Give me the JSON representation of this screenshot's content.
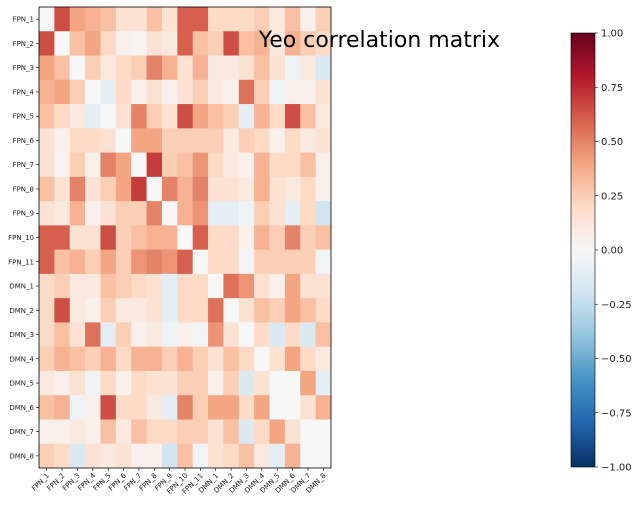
{
  "chart_data": {
    "type": "heatmap",
    "title": "Yeo correlation matrix",
    "xlabel": "",
    "ylabel": "",
    "labels": [
      "FPN_1",
      "FPN_2",
      "FPN_3",
      "FPN_4",
      "FPN_5",
      "FPN_6",
      "FPN_7",
      "FPN_8",
      "FPN_9",
      "FPN_10",
      "FPN_11",
      "DMN_1",
      "DMN_2",
      "DMN_3",
      "DMN_4",
      "DMN_5",
      "DMN_6",
      "DMN_7",
      "DMN_8"
    ],
    "values": [
      [
        0.0,
        0.65,
        0.4,
        0.35,
        0.3,
        0.15,
        0.15,
        0.3,
        0.15,
        0.6,
        0.6,
        0.2,
        0.2,
        0.2,
        0.25,
        0.1,
        0.3,
        0.05,
        0.25
      ],
      [
        0.65,
        0.0,
        0.3,
        0.4,
        0.2,
        0.05,
        0.03,
        0.15,
        0.1,
        0.6,
        0.3,
        0.25,
        0.65,
        0.3,
        0.35,
        0.1,
        0.35,
        0.25,
        0.2
      ],
      [
        0.4,
        0.3,
        0.0,
        0.25,
        0.1,
        0.2,
        0.25,
        0.5,
        0.35,
        0.15,
        0.35,
        0.1,
        0.1,
        0.15,
        0.3,
        0.15,
        -0.05,
        0.1,
        -0.15
      ],
      [
        0.35,
        0.4,
        0.25,
        0.0,
        -0.1,
        0.2,
        0.05,
        0.15,
        0.05,
        0.15,
        0.25,
        0.1,
        0.05,
        0.55,
        0.25,
        -0.05,
        0.05,
        0.05,
        0.15
      ],
      [
        0.3,
        0.2,
        0.1,
        -0.1,
        0.0,
        0.15,
        0.5,
        0.25,
        0.15,
        0.65,
        0.4,
        0.3,
        0.25,
        -0.1,
        0.35,
        0.2,
        0.65,
        0.3,
        0.1
      ],
      [
        0.15,
        0.05,
        0.2,
        0.2,
        0.15,
        0.0,
        0.4,
        0.4,
        0.25,
        0.25,
        0.25,
        0.25,
        0.1,
        0.25,
        0.2,
        0.05,
        0.2,
        0.1,
        0.15
      ],
      [
        0.15,
        0.03,
        0.25,
        0.05,
        0.5,
        0.4,
        0.0,
        0.7,
        0.25,
        0.3,
        0.45,
        0.2,
        0.1,
        0.05,
        0.35,
        0.2,
        0.2,
        0.3,
        0.05
      ],
      [
        0.3,
        0.15,
        0.5,
        0.15,
        0.25,
        0.4,
        0.7,
        0.0,
        0.5,
        0.35,
        0.5,
        0.15,
        0.15,
        0.1,
        0.35,
        0.15,
        0.1,
        0.2,
        0.05
      ],
      [
        0.15,
        0.1,
        0.35,
        0.05,
        0.15,
        0.25,
        0.25,
        0.5,
        0.0,
        0.35,
        0.45,
        -0.1,
        -0.1,
        -0.05,
        0.25,
        0.15,
        -0.1,
        0.2,
        -0.2
      ],
      [
        0.6,
        0.6,
        0.15,
        0.15,
        0.65,
        0.25,
        0.3,
        0.35,
        0.35,
        0.0,
        0.6,
        0.2,
        0.2,
        0.05,
        0.35,
        0.25,
        0.5,
        0.25,
        0.3
      ],
      [
        0.6,
        0.3,
        0.35,
        0.25,
        0.4,
        0.25,
        0.45,
        0.5,
        0.45,
        0.6,
        0.0,
        0.2,
        0.2,
        -0.03,
        0.25,
        0.25,
        0.25,
        0.25,
        -0.03
      ],
      [
        0.2,
        0.25,
        0.1,
        0.1,
        0.3,
        0.25,
        0.2,
        0.15,
        -0.1,
        0.2,
        0.2,
        0.0,
        0.55,
        0.45,
        0.15,
        0.05,
        0.4,
        0.15,
        0.15
      ],
      [
        0.2,
        0.65,
        0.1,
        0.05,
        0.25,
        0.1,
        0.1,
        0.15,
        -0.1,
        0.2,
        0.2,
        0.55,
        0.0,
        0.15,
        0.3,
        0.25,
        0.4,
        0.3,
        0.2
      ],
      [
        0.2,
        0.3,
        0.15,
        0.55,
        -0.1,
        0.25,
        0.05,
        0.1,
        -0.05,
        0.05,
        -0.03,
        0.45,
        0.15,
        0.0,
        0.2,
        -0.15,
        0.2,
        -0.15,
        0.3
      ],
      [
        0.25,
        0.35,
        0.3,
        0.25,
        0.35,
        0.2,
        0.35,
        0.35,
        0.25,
        0.35,
        0.25,
        0.15,
        0.3,
        0.2,
        0.0,
        0.15,
        0.4,
        0.2,
        0.1
      ],
      [
        0.1,
        0.05,
        0.15,
        -0.05,
        0.2,
        0.05,
        0.2,
        0.15,
        0.15,
        0.25,
        0.25,
        0.05,
        0.25,
        -0.15,
        0.15,
        0.0,
        0.0,
        0.4,
        -0.1
      ],
      [
        0.3,
        0.35,
        -0.05,
        0.05,
        0.65,
        0.2,
        0.2,
        0.1,
        -0.1,
        0.5,
        0.25,
        0.4,
        0.4,
        0.2,
        0.4,
        0.0,
        0.0,
        0.15,
        0.35
      ],
      [
        0.05,
        0.05,
        0.1,
        0.05,
        0.3,
        0.1,
        0.3,
        0.2,
        0.2,
        0.25,
        0.25,
        0.15,
        0.3,
        -0.15,
        0.2,
        0.4,
        0.15,
        0.0,
        0.0
      ],
      [
        0.25,
        0.2,
        -0.15,
        0.15,
        0.1,
        0.15,
        0.05,
        0.05,
        -0.2,
        0.3,
        -0.03,
        0.15,
        0.2,
        0.3,
        0.1,
        -0.1,
        0.35,
        0.0,
        0.0
      ]
    ],
    "colormap": "RdBu_r",
    "vmin": -1.0,
    "vmax": 1.0,
    "colorbar_ticks": [
      -1.0,
      -0.75,
      -0.5,
      -0.25,
      0.0,
      0.25,
      0.5,
      0.75,
      1.0
    ],
    "colorbar_tick_labels": [
      "−1.00",
      "−0.75",
      "−0.50",
      "−0.25",
      "0.00",
      "0.25",
      "0.50",
      "0.75",
      "1.00"
    ],
    "legend": "colorbar-right",
    "grid": false
  }
}
